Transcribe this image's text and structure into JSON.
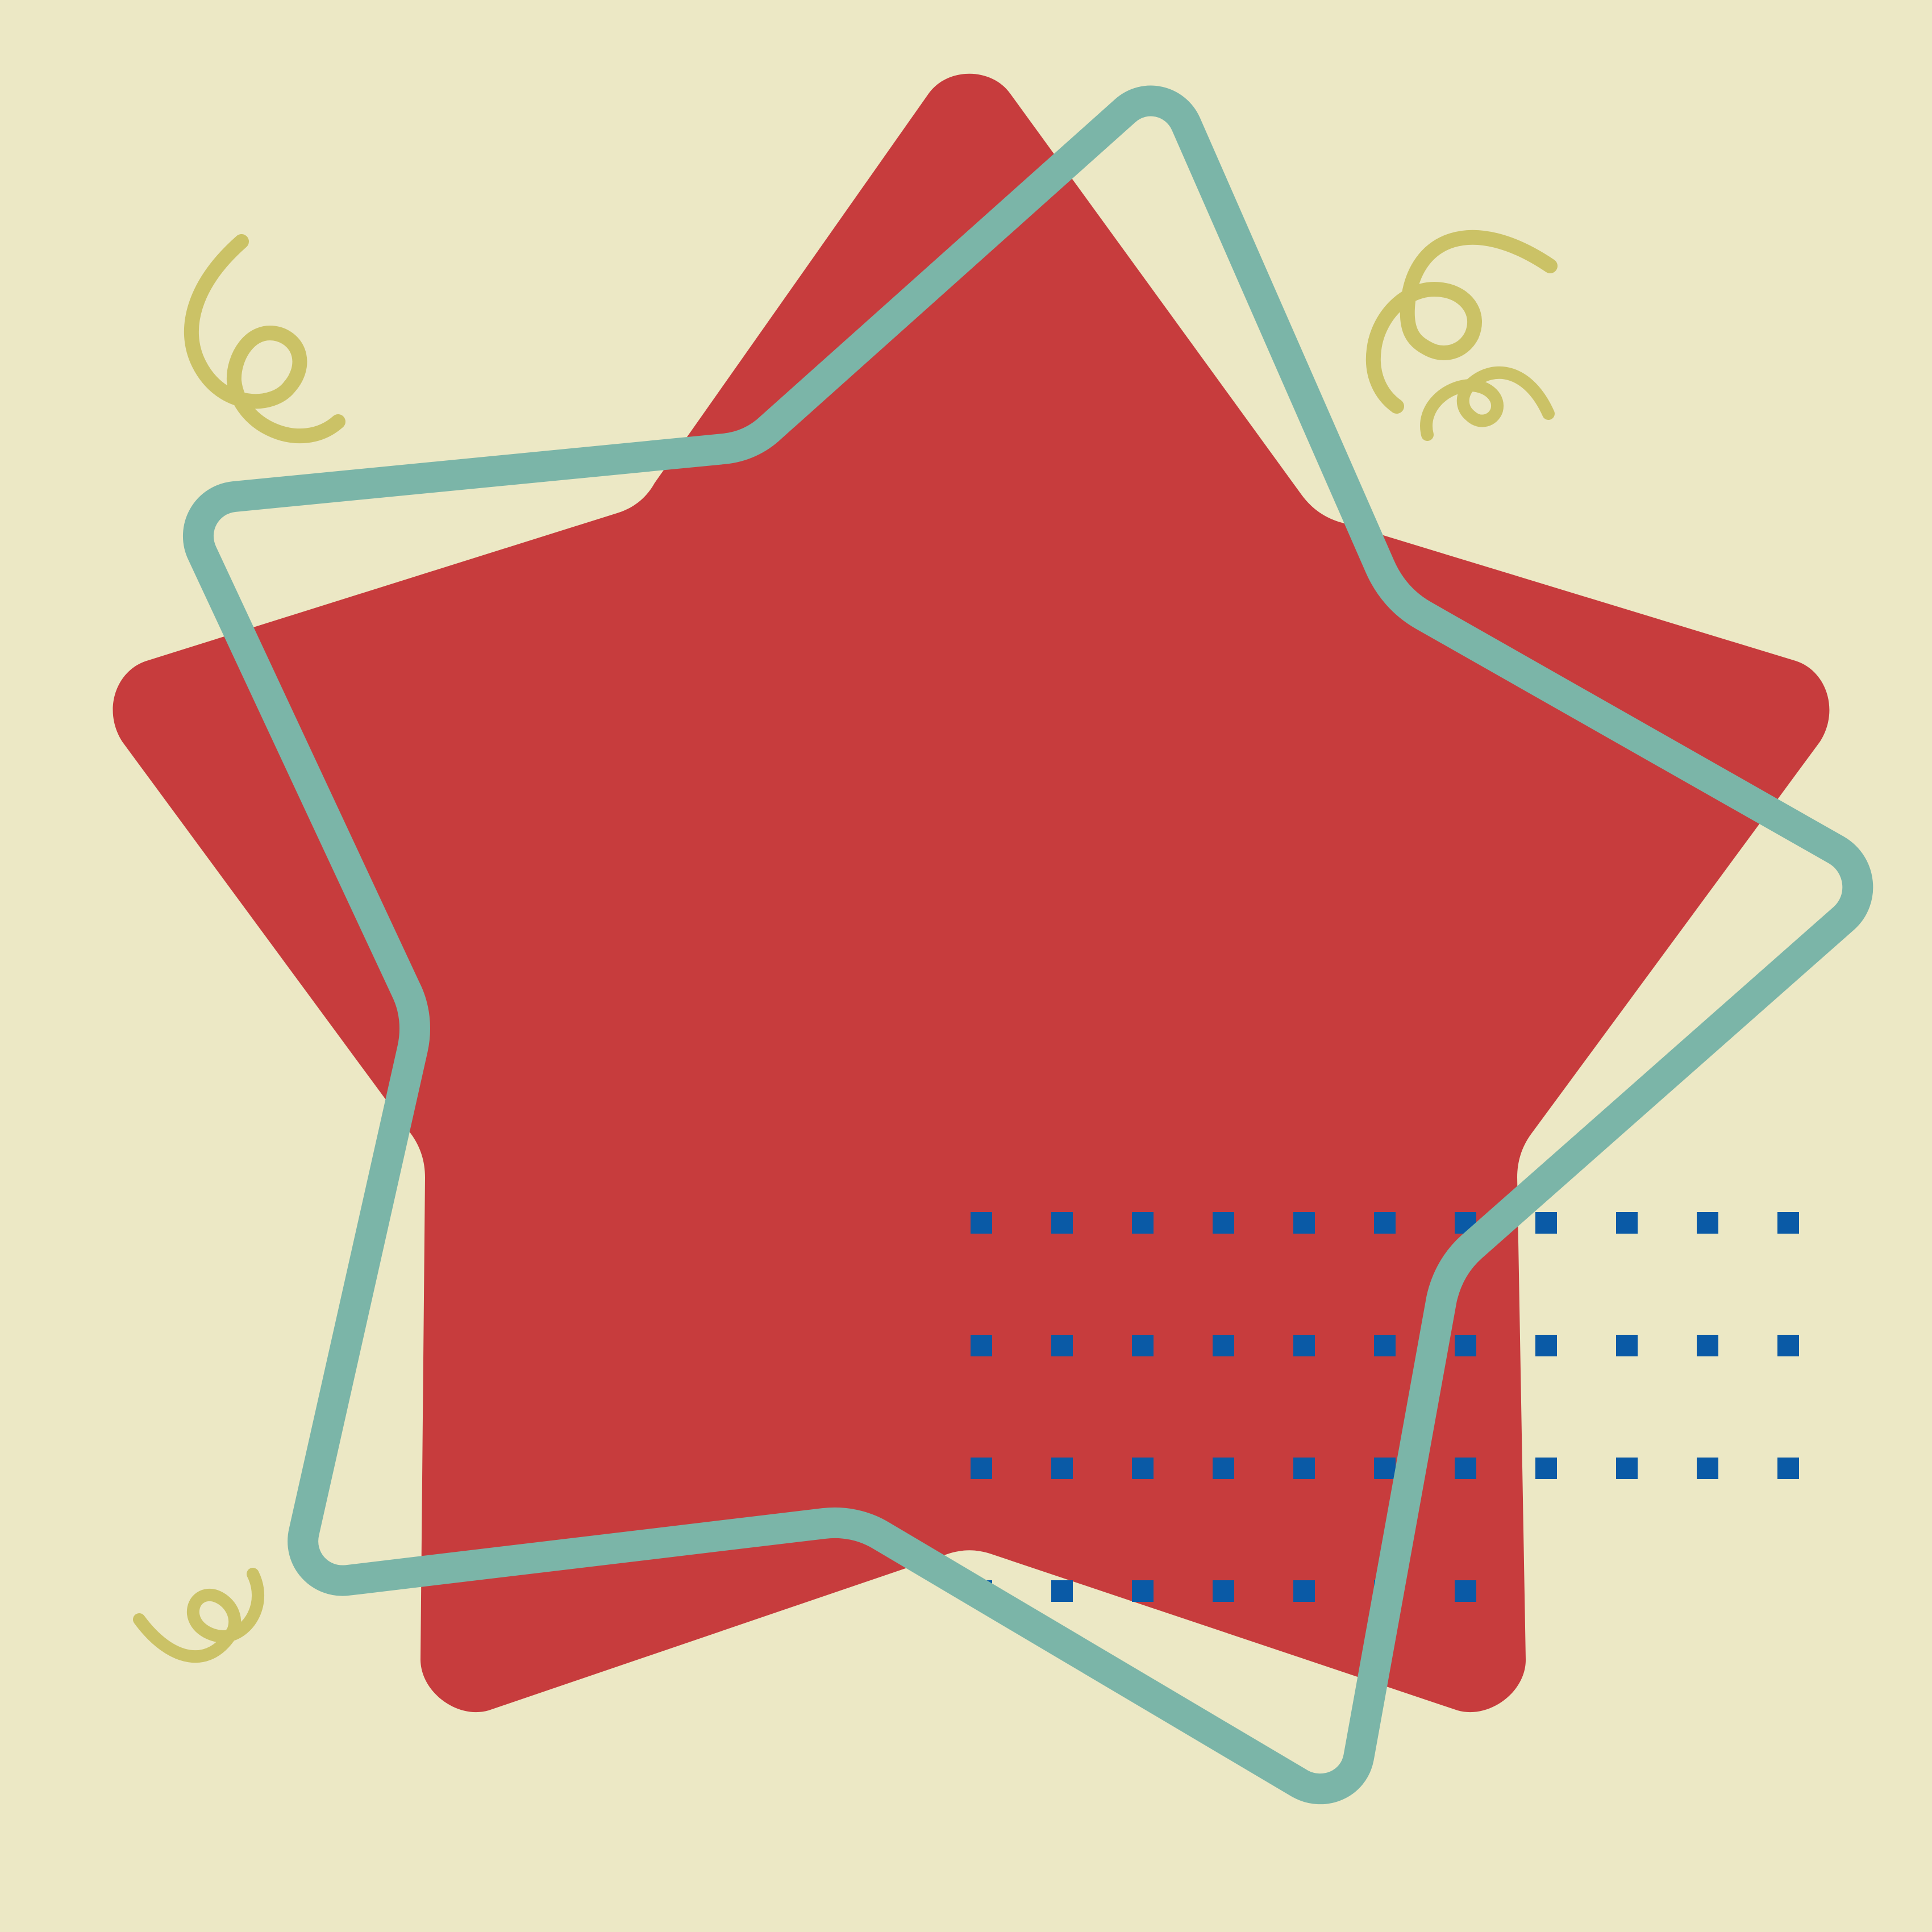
{
  "artwork": {
    "background_color": "#ece8c5",
    "star": {
      "fill": "#c73c3d",
      "shape": "rounded five-point star"
    },
    "outline_pentagon": {
      "stroke": "#7bb5a8",
      "shape": "rotated rounded pentagon outline"
    },
    "squiggles": {
      "color": "#cbc266",
      "count": 3
    },
    "dot_grid": {
      "color": "#0a5aa6",
      "rows": 4,
      "columns": 11,
      "last_row_columns": 7,
      "marker": "square"
    }
  }
}
